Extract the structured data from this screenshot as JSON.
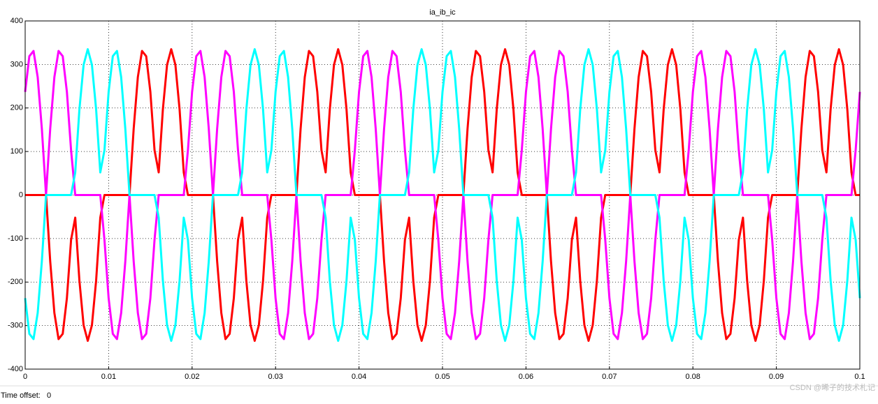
{
  "chart_data": {
    "type": "line",
    "title": "ia_ib_ic",
    "x": [
      0,
      0.0005,
      0.001,
      0.0015,
      0.002,
      0.0025,
      0.003,
      0.0035,
      0.004,
      0.0045,
      0.005,
      0.0055,
      0.006,
      0.0065,
      0.007,
      0.0075,
      0.008,
      0.0085,
      0.009,
      0.0095,
      0.01,
      0.0105,
      0.011,
      0.0115,
      0.012,
      0.0125,
      0.013,
      0.0135,
      0.014,
      0.0145,
      0.015,
      0.0155,
      0.016,
      0.0165,
      0.017,
      0.0175,
      0.018,
      0.0185,
      0.019,
      0.0195,
      0.02,
      0.0205,
      0.021,
      0.0215,
      0.022,
      0.0225,
      0.023,
      0.0235,
      0.024,
      0.0245,
      0.025,
      0.0255,
      0.026,
      0.0265,
      0.027,
      0.0275,
      0.028,
      0.0285,
      0.029,
      0.0295,
      0.03,
      0.0305,
      0.031,
      0.0315,
      0.032,
      0.0325,
      0.033,
      0.0335,
      0.034,
      0.0345,
      0.035,
      0.0355,
      0.036,
      0.0365,
      0.037,
      0.0375,
      0.038,
      0.0385,
      0.039,
      0.0395,
      0.04,
      0.0405,
      0.041,
      0.0415,
      0.042,
      0.0425,
      0.043,
      0.0435,
      0.044,
      0.0445,
      0.045,
      0.0455,
      0.046,
      0.0465,
      0.047,
      0.0475,
      0.048,
      0.0485,
      0.049,
      0.0495,
      0.05,
      0.0505,
      0.051,
      0.0515,
      0.052,
      0.0525,
      0.053,
      0.0535,
      0.054,
      0.0545,
      0.055,
      0.0555,
      0.056,
      0.0565,
      0.057,
      0.0575,
      0.058,
      0.0585,
      0.059,
      0.0595,
      0.06,
      0.0605,
      0.061,
      0.0615,
      0.062,
      0.0625,
      0.063,
      0.0635,
      0.064,
      0.0645,
      0.065,
      0.0655,
      0.066,
      0.0665,
      0.067,
      0.0675,
      0.068,
      0.0685,
      0.069,
      0.0695,
      0.07,
      0.0705,
      0.071,
      0.0715,
      0.072,
      0.0725,
      0.073,
      0.0735,
      0.074,
      0.0745,
      0.075,
      0.0755,
      0.076,
      0.0765,
      0.077,
      0.0775,
      0.078,
      0.0785,
      0.079,
      0.0795,
      0.08,
      0.0805,
      0.081,
      0.0815,
      0.082,
      0.0825,
      0.083,
      0.0835,
      0.084,
      0.0845,
      0.085,
      0.0855,
      0.086,
      0.0865,
      0.087,
      0.0875,
      0.088,
      0.0885,
      0.089,
      0.0895,
      0.09,
      0.0905,
      0.091,
      0.0915,
      0.092,
      0.0925,
      0.093,
      0.0935,
      0.094,
      0.0945,
      0.095,
      0.0955,
      0.096,
      0.0965,
      0.097,
      0.0975,
      0.098,
      0.0985,
      0.099,
      0.0995,
      0.1
    ],
    "series": [
      {
        "color": "#ff0000",
        "values": [
          0,
          0,
          0,
          0,
          0,
          0,
          -152,
          -271,
          -331,
          -319,
          -237,
          -103,
          -52,
          -197,
          -299,
          -335,
          -299,
          -197,
          -52,
          0,
          0,
          0,
          0,
          0,
          0,
          0,
          152,
          271,
          331,
          319,
          237,
          103,
          52,
          197,
          299,
          335,
          299,
          197,
          52,
          0,
          0,
          0,
          0,
          0,
          0,
          0,
          -152,
          -271,
          -331,
          -319,
          -237,
          -103,
          -52,
          -197,
          -299,
          -335,
          -299,
          -197,
          -52,
          0,
          0,
          0,
          0,
          0,
          0,
          0,
          152,
          271,
          331,
          319,
          237,
          103,
          52,
          197,
          299,
          335,
          299,
          197,
          52,
          0,
          0,
          0,
          0,
          0,
          0,
          0,
          -152,
          -271,
          -331,
          -319,
          -237,
          -103,
          -52,
          -197,
          -299,
          -335,
          -299,
          -197,
          -52,
          0,
          0,
          0,
          0,
          0,
          0,
          0,
          152,
          271,
          331,
          319,
          237,
          103,
          52,
          197,
          299,
          335,
          299,
          197,
          52,
          0,
          0,
          0,
          0,
          0,
          0,
          0,
          -152,
          -271,
          -331,
          -319,
          -237,
          -103,
          -52,
          -197,
          -299,
          -335,
          -299,
          -197,
          -52,
          0,
          0,
          0,
          0,
          0,
          0,
          0,
          152,
          271,
          331,
          319,
          237,
          103,
          52,
          197,
          299,
          335,
          299,
          197,
          52,
          0,
          0,
          0,
          0,
          0,
          0,
          0,
          -152,
          -271,
          -331,
          -319,
          -237,
          -103,
          -52,
          -197,
          -299,
          -335,
          -299,
          -197,
          -52,
          0,
          0,
          0,
          0,
          0,
          0,
          0,
          152,
          271,
          331,
          319,
          237,
          103,
          52,
          197,
          299,
          335,
          299,
          197,
          52,
          0,
          0
        ]
      },
      {
        "color": "#ff00ff",
        "values": [
          237,
          319,
          331,
          271,
          152,
          0,
          152,
          271,
          331,
          319,
          237,
          103,
          0,
          0,
          0,
          0,
          0,
          0,
          0,
          -103,
          -237,
          -319,
          -331,
          -271,
          -152,
          0,
          -152,
          -271,
          -331,
          -319,
          -237,
          -103,
          0,
          0,
          0,
          0,
          0,
          0,
          0,
          103,
          237,
          319,
          331,
          271,
          152,
          0,
          152,
          271,
          331,
          319,
          237,
          103,
          0,
          0,
          0,
          0,
          0,
          0,
          0,
          -103,
          -237,
          -319,
          -331,
          -271,
          -152,
          0,
          -152,
          -271,
          -331,
          -319,
          -237,
          -103,
          0,
          0,
          0,
          0,
          0,
          0,
          0,
          103,
          237,
          319,
          331,
          271,
          152,
          0,
          152,
          271,
          331,
          319,
          237,
          103,
          0,
          0,
          0,
          0,
          0,
          0,
          0,
          -103,
          -237,
          -319,
          -331,
          -271,
          -152,
          0,
          -152,
          -271,
          -331,
          -319,
          -237,
          -103,
          0,
          0,
          0,
          0,
          0,
          0,
          0,
          103,
          237,
          319,
          331,
          271,
          152,
          0,
          152,
          271,
          331,
          319,
          237,
          103,
          0,
          0,
          0,
          0,
          0,
          0,
          0,
          -103,
          -237,
          -319,
          -331,
          -271,
          -152,
          0,
          -152,
          -271,
          -331,
          -319,
          -237,
          -103,
          0,
          0,
          0,
          0,
          0,
          0,
          0,
          103,
          237,
          319,
          331,
          271,
          152,
          0,
          152,
          271,
          331,
          319,
          237,
          103,
          0,
          0,
          0,
          0,
          0,
          0,
          0,
          -103,
          -237,
          -319,
          -331,
          -271,
          -152,
          0,
          -152,
          -271,
          -331,
          -319,
          -237,
          -103,
          0,
          0,
          0,
          0,
          0,
          0,
          0,
          103,
          237
        ]
      },
      {
        "color": "#00ffff",
        "values": [
          -237,
          -319,
          -331,
          -271,
          -152,
          0,
          0,
          0,
          0,
          0,
          0,
          0,
          52,
          197,
          299,
          335,
          299,
          197,
          52,
          103,
          237,
          319,
          331,
          271,
          152,
          0,
          0,
          0,
          0,
          0,
          0,
          0,
          -52,
          -197,
          -299,
          -335,
          -299,
          -197,
          -52,
          -103,
          -237,
          -319,
          -331,
          -271,
          -152,
          0,
          0,
          0,
          0,
          0,
          0,
          0,
          52,
          197,
          299,
          335,
          299,
          197,
          52,
          103,
          237,
          319,
          331,
          271,
          152,
          0,
          0,
          0,
          0,
          0,
          0,
          0,
          -52,
          -197,
          -299,
          -335,
          -299,
          -197,
          -52,
          -103,
          -237,
          -319,
          -331,
          -271,
          -152,
          0,
          0,
          0,
          0,
          0,
          0,
          0,
          52,
          197,
          299,
          335,
          299,
          197,
          52,
          103,
          237,
          319,
          331,
          271,
          152,
          0,
          0,
          0,
          0,
          0,
          0,
          0,
          -52,
          -197,
          -299,
          -335,
          -299,
          -197,
          -52,
          -103,
          -237,
          -319,
          -331,
          -271,
          -152,
          0,
          0,
          0,
          0,
          0,
          0,
          0,
          52,
          197,
          299,
          335,
          299,
          197,
          52,
          103,
          237,
          319,
          331,
          271,
          152,
          0,
          0,
          0,
          0,
          0,
          0,
          0,
          -52,
          -197,
          -299,
          -335,
          -299,
          -197,
          -52,
          -103,
          -237,
          -319,
          -331,
          -271,
          -152,
          0,
          0,
          0,
          0,
          0,
          0,
          0,
          52,
          197,
          299,
          335,
          299,
          197,
          52,
          103,
          237,
          319,
          331,
          271,
          152,
          0,
          0,
          0,
          0,
          0,
          0,
          0,
          -52,
          -197,
          -299,
          -335,
          -299,
          -197,
          -52,
          -103,
          -237
        ]
      }
    ],
    "xlim": [
      0,
      0.1
    ],
    "xticks": [
      0,
      0.01,
      0.02,
      0.03,
      0.04,
      0.05,
      0.06,
      0.07,
      0.08,
      0.09,
      0.1
    ],
    "ylim": [
      -400,
      400
    ],
    "yticks": [
      -400,
      -300,
      -200,
      -100,
      0,
      100,
      200,
      300,
      400
    ],
    "grid": true
  },
  "footer": {
    "label": "Time offset:",
    "value": "0"
  },
  "watermark": "CSDN @晞子的技术札记"
}
